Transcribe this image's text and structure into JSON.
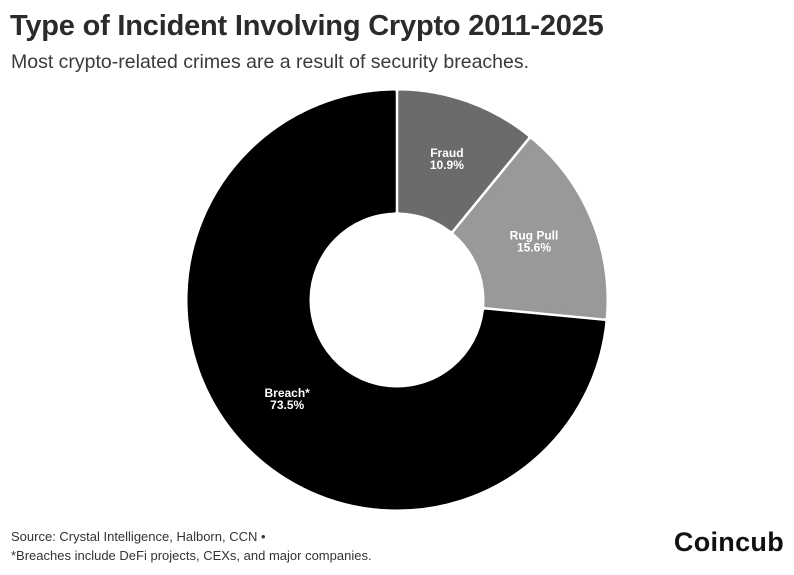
{
  "title": "Type of Incident Involving Crypto 2011-2025",
  "subtitle": "Most crypto-related crimes are a result of security breaches.",
  "chart_data": {
    "type": "pie",
    "variant": "donut",
    "slices": [
      {
        "label": "Fraud",
        "value": 10.9,
        "value_label": "10.9%",
        "color": "#6b6b6b"
      },
      {
        "label": "Rug Pull",
        "value": 15.6,
        "value_label": "15.6%",
        "color": "#999999"
      },
      {
        "label": "Breach*",
        "value": 73.5,
        "value_label": "73.5%",
        "color": "#000000"
      }
    ]
  },
  "footer": {
    "source": "Source: Crystal Intelligence, Halborn, CCN •",
    "note": "*Breaches include DeFi projects, CEXs, and major companies.",
    "brand": "Coincub"
  }
}
